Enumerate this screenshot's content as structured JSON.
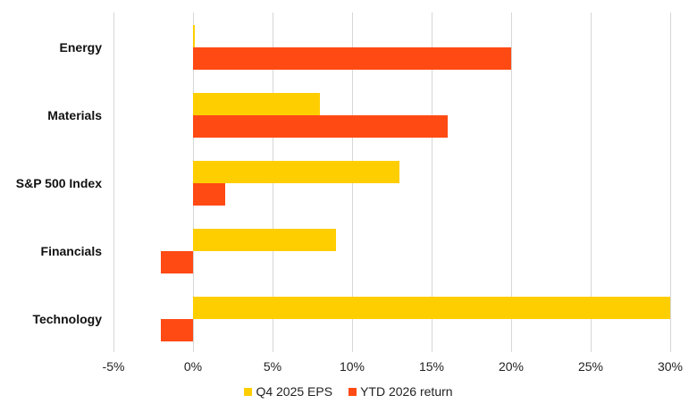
{
  "chart_data": {
    "type": "bar",
    "orientation": "horizontal",
    "title": "",
    "xlabel": "",
    "ylabel": "",
    "categories": [
      "Energy",
      "Materials",
      "S&P 500 Index",
      "Financials",
      "Technology"
    ],
    "series": [
      {
        "name": "Q4 2025 EPS",
        "color": "#FFCE00",
        "values": [
          0.1,
          8,
          13,
          9,
          30
        ]
      },
      {
        "name": "YTD 2026 return",
        "color": "#FF4A14",
        "values": [
          20,
          16,
          2,
          -2,
          -2
        ]
      }
    ],
    "xlim": [
      -5,
      30
    ],
    "x_ticks": [
      "-5%",
      "0%",
      "5%",
      "10%",
      "15%",
      "20%",
      "25%",
      "30%"
    ],
    "x_tick_values": [
      -5,
      0,
      5,
      10,
      15,
      20,
      25,
      30
    ],
    "grid": "vertical",
    "legend_position": "bottom"
  }
}
